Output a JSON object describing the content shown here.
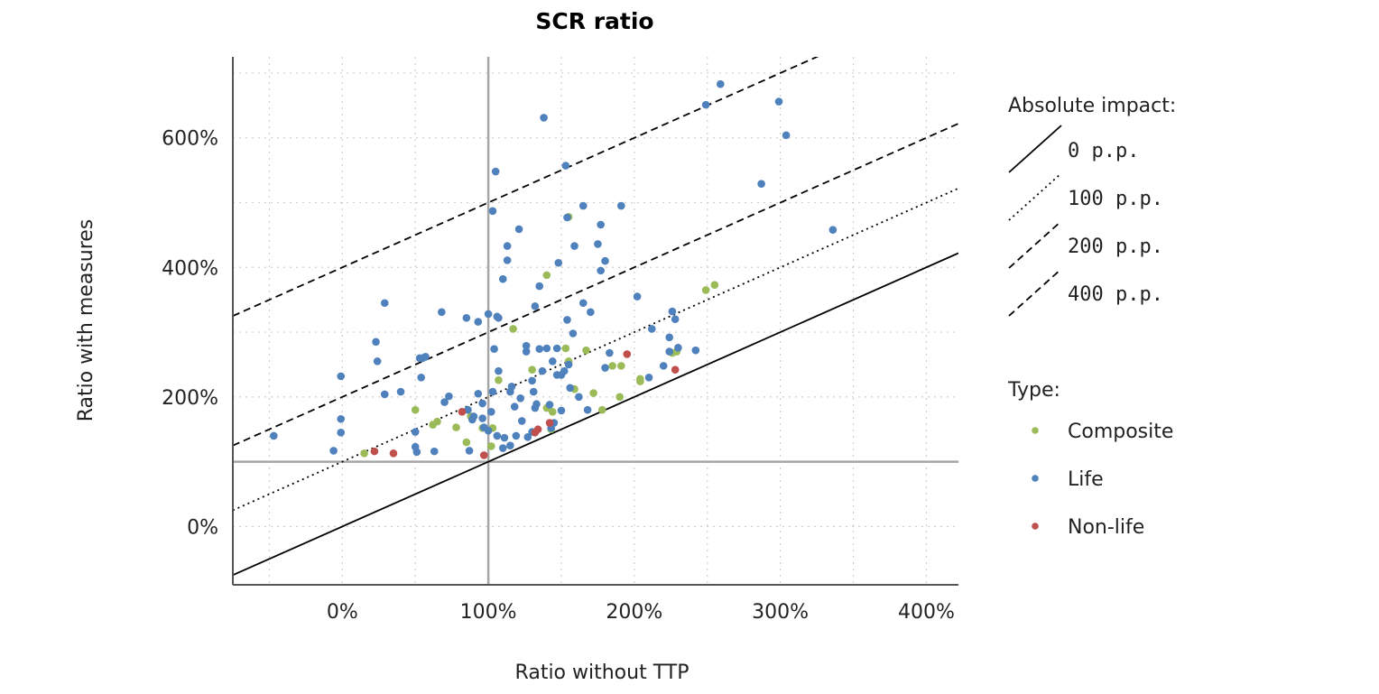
{
  "chart_data": {
    "type": "scatter",
    "title": "SCR ratio",
    "xlabel": "Ratio without TTP",
    "ylabel": "Ratio with measures",
    "xlim": [
      -75,
      422
    ],
    "ylim": [
      -90,
      725
    ],
    "x_ticks": [
      0,
      100,
      200,
      300,
      400
    ],
    "x_tick_labels": [
      "0%",
      "100%",
      "200%",
      "300%",
      "400%"
    ],
    "y_ticks": [
      0,
      200,
      400,
      600
    ],
    "y_tick_labels": [
      "0%",
      "200%",
      "400%",
      "600%"
    ],
    "reference_lines": {
      "x": 100,
      "y": 100
    },
    "grid": "dotted",
    "legend_position": "right",
    "impact_legend": {
      "title": "Absolute impact:",
      "entries": [
        {
          "label": "0 p.p.",
          "offset": 0,
          "style": "solid"
        },
        {
          "label": "100 p.p.",
          "offset": 100,
          "style": "dotted"
        },
        {
          "label": "200 p.p.",
          "offset": 200,
          "style": "dashed"
        },
        {
          "label": "400 p.p.",
          "offset": 400,
          "style": "dashed"
        }
      ]
    },
    "type_legend": {
      "title": "Type:"
    },
    "series": [
      {
        "name": "Composite",
        "color": "#9bbb59",
        "points": [
          [
            155,
            478
          ],
          [
            140,
            388
          ],
          [
            117,
            305
          ],
          [
            255,
            373
          ],
          [
            249,
            365
          ],
          [
            153,
            275
          ],
          [
            167,
            272
          ],
          [
            155,
            255
          ],
          [
            130,
            242
          ],
          [
            185,
            248
          ],
          [
            191,
            248
          ],
          [
            204,
            228
          ],
          [
            204,
            224
          ],
          [
            229,
            270
          ],
          [
            226,
            268
          ],
          [
            159,
            212
          ],
          [
            172,
            206
          ],
          [
            190,
            200
          ],
          [
            178,
            180
          ],
          [
            140,
            183
          ],
          [
            144,
            177
          ],
          [
            65,
            162
          ],
          [
            62,
            157
          ],
          [
            78,
            153
          ],
          [
            96,
            152
          ],
          [
            103,
            152
          ],
          [
            143,
            150
          ],
          [
            85,
            130
          ],
          [
            102,
            124
          ],
          [
            15,
            113
          ],
          [
            50,
            180
          ],
          [
            107,
            226
          ],
          [
            88,
            170
          ]
        ]
      },
      {
        "name": "Life",
        "color": "#4f81bd",
        "points": [
          [
            259,
            683
          ],
          [
            249,
            651
          ],
          [
            299,
            656
          ],
          [
            304,
            604
          ],
          [
            138,
            631
          ],
          [
            153,
            557
          ],
          [
            105,
            548
          ],
          [
            165,
            495
          ],
          [
            191,
            495
          ],
          [
            103,
            487
          ],
          [
            154,
            477
          ],
          [
            177,
            466
          ],
          [
            336,
            458
          ],
          [
            121,
            459
          ],
          [
            159,
            433
          ],
          [
            175,
            436
          ],
          [
            113,
            433
          ],
          [
            148,
            407
          ],
          [
            180,
            410
          ],
          [
            113,
            411
          ],
          [
            287,
            529
          ],
          [
            110,
            382
          ],
          [
            177,
            395
          ],
          [
            135,
            371
          ],
          [
            29,
            345
          ],
          [
            68,
            331
          ],
          [
            85,
            322
          ],
          [
            93,
            316
          ],
          [
            100,
            328
          ],
          [
            107,
            322
          ],
          [
            106,
            324
          ],
          [
            132,
            340
          ],
          [
            154,
            319
          ],
          [
            165,
            345
          ],
          [
            170,
            331
          ],
          [
            202,
            355
          ],
          [
            212,
            305
          ],
          [
            226,
            332
          ],
          [
            228,
            320
          ],
          [
            224,
            292
          ],
          [
            242,
            272
          ],
          [
            230,
            276
          ],
          [
            224,
            270
          ],
          [
            23,
            285
          ],
          [
            24,
            255
          ],
          [
            40,
            208
          ],
          [
            29,
            204
          ],
          [
            -47,
            140
          ],
          [
            -1,
            232
          ],
          [
            -1,
            166
          ],
          [
            -1,
            145
          ],
          [
            -6,
            117
          ],
          [
            50,
            146
          ],
          [
            55,
            260
          ],
          [
            53,
            260
          ],
          [
            57,
            262
          ],
          [
            54,
            230
          ],
          [
            50,
            123
          ],
          [
            51,
            115
          ],
          [
            63,
            116
          ],
          [
            70,
            192
          ],
          [
            73,
            201
          ],
          [
            87,
            117
          ],
          [
            89,
            165
          ],
          [
            90,
            170
          ],
          [
            96,
            167
          ],
          [
            102,
            177
          ],
          [
            103,
            208
          ],
          [
            104,
            274
          ],
          [
            107,
            240
          ],
          [
            116,
            216
          ],
          [
            122,
            198
          ],
          [
            126,
            270
          ],
          [
            126,
            279
          ],
          [
            131,
            208
          ],
          [
            132,
            183
          ],
          [
            135,
            274
          ],
          [
            147,
            275
          ],
          [
            142,
            188
          ],
          [
            150,
            179
          ],
          [
            143,
            152
          ],
          [
            145,
            160
          ],
          [
            130,
            146
          ],
          [
            123,
            163
          ],
          [
            118,
            185
          ],
          [
            115,
            125
          ],
          [
            106,
            140
          ],
          [
            100,
            148
          ],
          [
            96,
            190
          ],
          [
            111,
            137
          ],
          [
            115,
            208
          ],
          [
            130,
            225
          ],
          [
            152,
            240
          ],
          [
            158,
            298
          ],
          [
            150,
            234
          ],
          [
            156,
            214
          ],
          [
            162,
            200
          ],
          [
            168,
            180
          ],
          [
            183,
            268
          ],
          [
            180,
            245
          ],
          [
            110,
            121
          ],
          [
            119,
            140
          ],
          [
            127,
            138
          ],
          [
            93,
            205
          ],
          [
            86,
            180
          ],
          [
            97,
            153
          ],
          [
            137,
            240
          ],
          [
            144,
            255
          ],
          [
            155,
            250
          ],
          [
            210,
            230
          ],
          [
            220,
            248
          ],
          [
            140,
            275
          ],
          [
            147,
            234
          ],
          [
            133,
            189
          ]
        ]
      },
      {
        "name": "Non-life",
        "color": "#c0504d",
        "points": [
          [
            195,
            266
          ],
          [
            228,
            242
          ],
          [
            82,
            177
          ],
          [
            142,
            160
          ],
          [
            134,
            150
          ],
          [
            132,
            145
          ],
          [
            97,
            110
          ],
          [
            35,
            113
          ],
          [
            22,
            116
          ]
        ]
      }
    ]
  }
}
